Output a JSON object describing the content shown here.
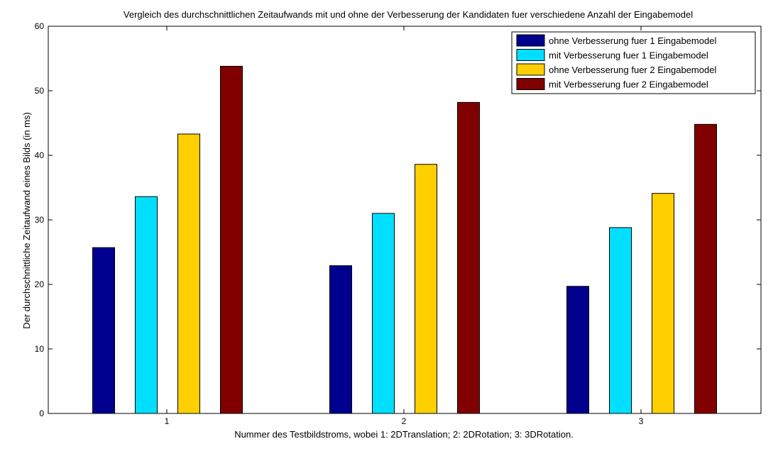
{
  "chart_data": {
    "type": "bar",
    "title": "Vergleich des durchschnittlichen Zeitaufwands mit und ohne der Verbesserung der Kandidaten fuer verschiedene Anzahl der Eingabemodel",
    "xlabel": "Nummer des Testbildstroms, wobei 1: 2DTranslation; 2: 2DRotation; 3: 3DRotation.",
    "ylabel": "Der durchschnittliche Zeitaufwand eines Bilds (in ms)",
    "categories": [
      "1",
      "2",
      "3"
    ],
    "ylim": [
      0,
      60
    ],
    "yticks": [
      "0",
      "10",
      "20",
      "30",
      "40",
      "50",
      "60"
    ],
    "grid": false,
    "legend_position": "top-right",
    "series": [
      {
        "name": "ohne Verbesserung fuer 1 Eingabemodel",
        "color": "#00008f",
        "values": [
          25.7,
          22.9,
          19.7
        ]
      },
      {
        "name": "mit Verbesserung fuer 1 Eingabemodel",
        "color": "#00dfff",
        "values": [
          33.6,
          31.0,
          28.8
        ]
      },
      {
        "name": "ohne Verbesserung fuer 2 Eingabemodel",
        "color": "#ffcf00",
        "values": [
          43.3,
          38.6,
          34.1
        ]
      },
      {
        "name": "mit Verbesserung fuer 2 Eingabemodel",
        "color": "#800000",
        "values": [
          53.8,
          48.2,
          44.8
        ]
      }
    ]
  }
}
